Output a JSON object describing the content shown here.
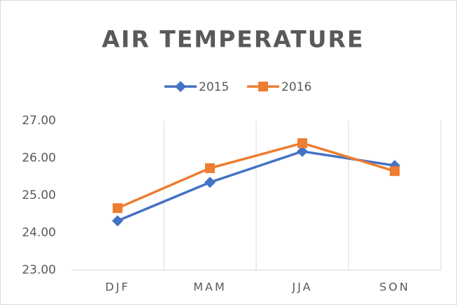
{
  "chart_data": {
    "type": "line",
    "title": "AIR TEMPERATURE",
    "categories": [
      "DJF",
      "MAM",
      "JJA",
      "SON"
    ],
    "series": [
      {
        "name": "2015",
        "color": "#4472c4",
        "marker": "diamond",
        "values": [
          24.32,
          25.35,
          26.18,
          25.8
        ]
      },
      {
        "name": "2016",
        "color": "#ed7d31",
        "marker": "square",
        "values": [
          24.66,
          25.73,
          26.4,
          25.65
        ]
      }
    ],
    "ylim": [
      23,
      27
    ],
    "yticks": [
      {
        "value": 23,
        "label": "23.00"
      },
      {
        "value": 24,
        "label": "24.00"
      },
      {
        "value": 25,
        "label": "25.00"
      },
      {
        "value": 26,
        "label": "26.00"
      },
      {
        "value": 27,
        "label": "27.00"
      }
    ],
    "grid": "vertical",
    "legend": "top"
  }
}
